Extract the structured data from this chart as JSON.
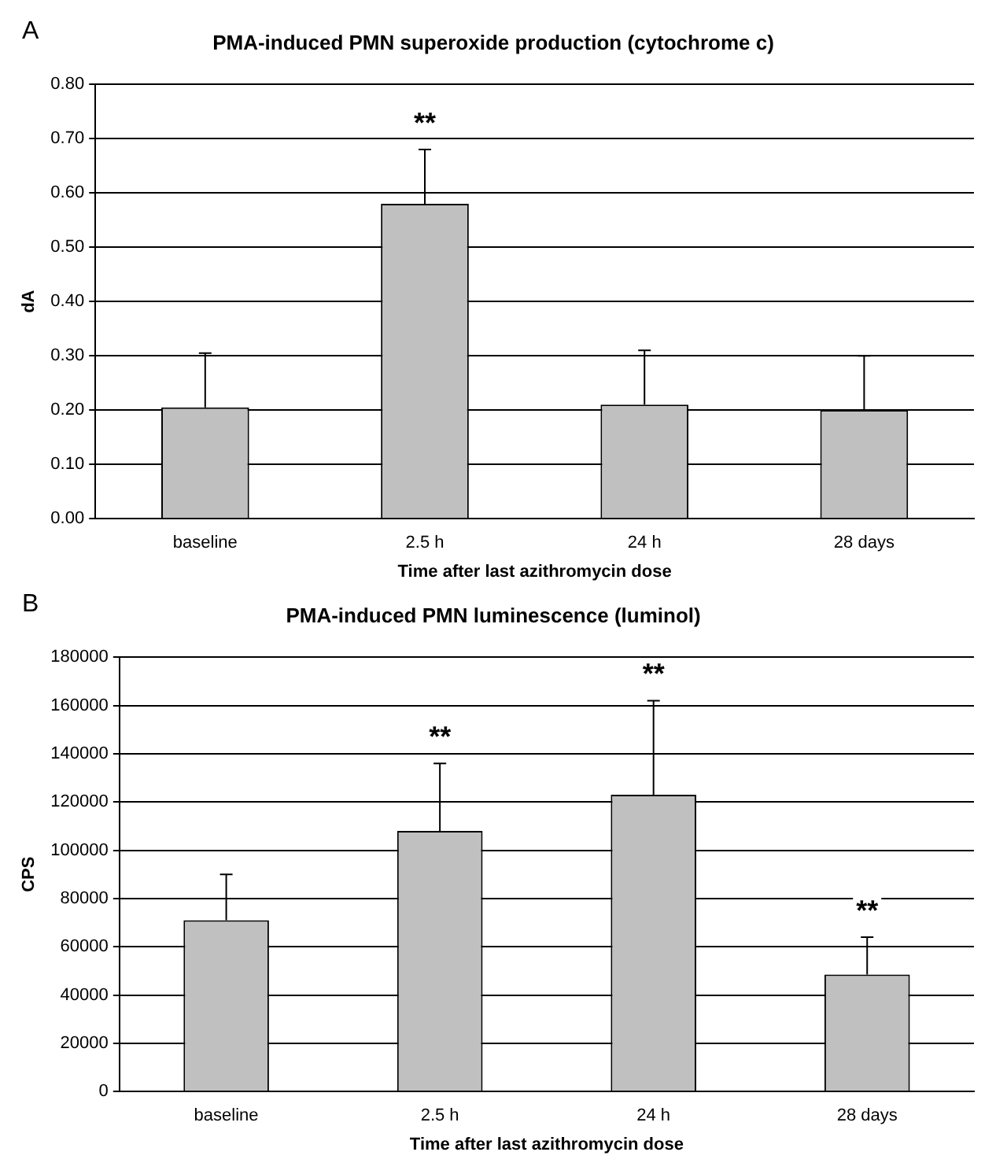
{
  "chart_data": [
    {
      "type": "bar",
      "title": "PMA-induced PMN superoxide production (cytochrome c)",
      "xlabel": "Time after last azithromycin dose",
      "ylabel": "dA",
      "categories": [
        "baseline",
        "2.5 h",
        "24 h",
        "28 days"
      ],
      "values": [
        0.205,
        0.58,
        0.21,
        0.2
      ],
      "errors": [
        [
          0.205,
          0.305
        ],
        [
          0.58,
          0.68
        ],
        [
          0.21,
          0.31
        ],
        [
          0.2,
          0.3
        ]
      ],
      "color": "#c0c0c0",
      "ylim": [
        0,
        0.8
      ],
      "yticks": [
        {
          "value": 0,
          "label": "0.00"
        },
        {
          "value": 0.1,
          "label": "0.10"
        },
        {
          "value": 0.2,
          "label": "0.20"
        },
        {
          "value": 0.3,
          "label": "0.30"
        },
        {
          "value": 0.4,
          "label": "0.40"
        },
        {
          "value": 0.5,
          "label": "0.50"
        },
        {
          "value": 0.6,
          "label": "0.60"
        },
        {
          "value": 0.7,
          "label": "0.70"
        },
        {
          "value": 0.8,
          "label": "0.80"
        }
      ],
      "grid": "y",
      "legend": false,
      "annotations": [
        "A",
        {
          "text": "**",
          "x": "2.5 h",
          "y": 0.68
        }
      ]
    },
    {
      "type": "bar",
      "title": "PMA-induced PMN luminescence (luminol)",
      "xlabel": "Time after last azithromycin dose",
      "ylabel": "CPS",
      "categories": [
        "baseline",
        "2.5 h",
        "24 h",
        "28 days"
      ],
      "values": [
        71000,
        108000,
        123000,
        48500
      ],
      "errors": [
        [
          71000,
          90000
        ],
        [
          108000,
          136000
        ],
        [
          123000,
          162000
        ],
        [
          48500,
          64000
        ]
      ],
      "color": "#c0c0c0",
      "ylim": [
        0,
        180000
      ],
      "yticks": [
        0,
        20000,
        40000,
        60000,
        80000,
        100000,
        120000,
        140000,
        160000,
        180000
      ],
      "grid": "y",
      "legend": false,
      "annotations": [
        "B",
        {
          "text": "**",
          "x": "2.5 h",
          "y": 136000
        },
        {
          "text": "**",
          "x": "24 h",
          "y": 162000
        },
        {
          "text": "**",
          "x": "28 days",
          "y": 64000
        }
      ]
    }
  ]
}
